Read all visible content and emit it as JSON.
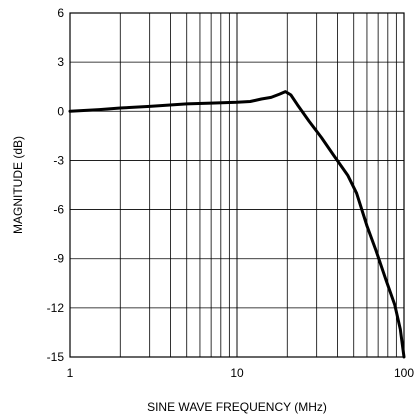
{
  "chart_data": {
    "type": "line",
    "title": "",
    "xlabel": "SINE WAVE FREQUENCY (MHz)",
    "ylabel": "MAGNITUDE (dB)",
    "xscale": "log",
    "xlim": [
      1,
      100
    ],
    "ylim": [
      -15,
      6
    ],
    "x_ticks": [
      1,
      10,
      100
    ],
    "x_tick_labels": [
      "1",
      "10",
      "100"
    ],
    "y_ticks": [
      6,
      3,
      0,
      -3,
      -6,
      -9,
      -12,
      -15
    ],
    "y_tick_labels": [
      "6",
      "3",
      "0",
      "-3",
      "-6",
      "-9",
      "-12",
      "-15"
    ],
    "grid": true,
    "series": [
      {
        "points": [
          [
            1,
            0.0
          ],
          [
            1.5,
            0.1
          ],
          [
            2,
            0.2
          ],
          [
            3,
            0.3
          ],
          [
            5,
            0.45
          ],
          [
            7,
            0.5
          ],
          [
            10,
            0.55
          ],
          [
            12,
            0.6
          ],
          [
            14,
            0.75
          ],
          [
            16,
            0.85
          ],
          [
            18,
            1.05
          ],
          [
            19.5,
            1.2
          ],
          [
            21,
            1.0
          ],
          [
            23,
            0.4
          ],
          [
            27,
            -0.6
          ],
          [
            32,
            -1.6
          ],
          [
            38,
            -2.7
          ],
          [
            46,
            -3.9
          ],
          [
            52,
            -5.0
          ],
          [
            60,
            -7.0
          ],
          [
            68,
            -8.5
          ],
          [
            78,
            -10.3
          ],
          [
            88,
            -11.8
          ],
          [
            95,
            -13.3
          ],
          [
            100,
            -15.0
          ]
        ]
      }
    ]
  }
}
